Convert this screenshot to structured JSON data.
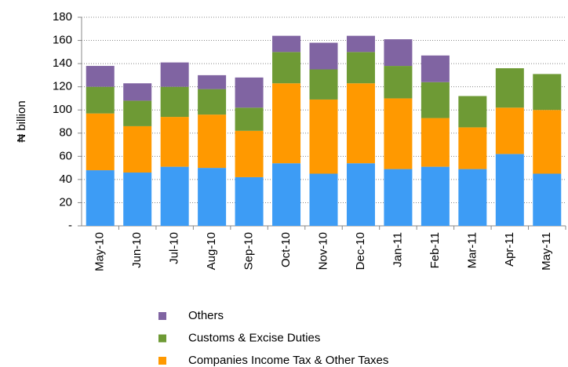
{
  "chart_data": {
    "type": "stacked_bar",
    "y_label": "₦ billion",
    "categories": [
      "May-10",
      "Jun-10",
      "Jul-10",
      "Aug-10",
      "Sep-10",
      "Oct-10",
      "Nov-10",
      "Dec-10",
      "Jan-11",
      "Feb-11",
      "Mar-11",
      "Apr-11",
      "May-11"
    ],
    "series": [
      {
        "color": "#3d9cf5",
        "values": [
          48,
          46,
          51,
          50,
          42,
          54,
          45,
          54,
          49,
          51,
          49,
          62,
          45
        ]
      },
      {
        "name": "Companies Income Tax & Other Taxes",
        "color": "#ff9900",
        "values": [
          49,
          40,
          43,
          46,
          40,
          69,
          64,
          69,
          61,
          42,
          36,
          40,
          55
        ]
      },
      {
        "name": "Customs & Excise Duties",
        "color": "#6e9a35",
        "values": [
          23,
          22,
          26,
          22,
          20,
          27,
          26,
          27,
          28,
          31,
          27,
          34,
          31
        ]
      },
      {
        "name": "Others",
        "color": "#8064a2",
        "values": [
          18,
          15,
          21,
          12,
          26,
          14,
          23,
          14,
          23,
          23,
          null,
          null,
          null
        ]
      }
    ],
    "ylim": [
      0,
      180
    ],
    "yticks": [
      {
        "value": 0,
        "label": "-"
      },
      20,
      40,
      60,
      80,
      100,
      120,
      140,
      160,
      180
    ],
    "grid": true
  }
}
